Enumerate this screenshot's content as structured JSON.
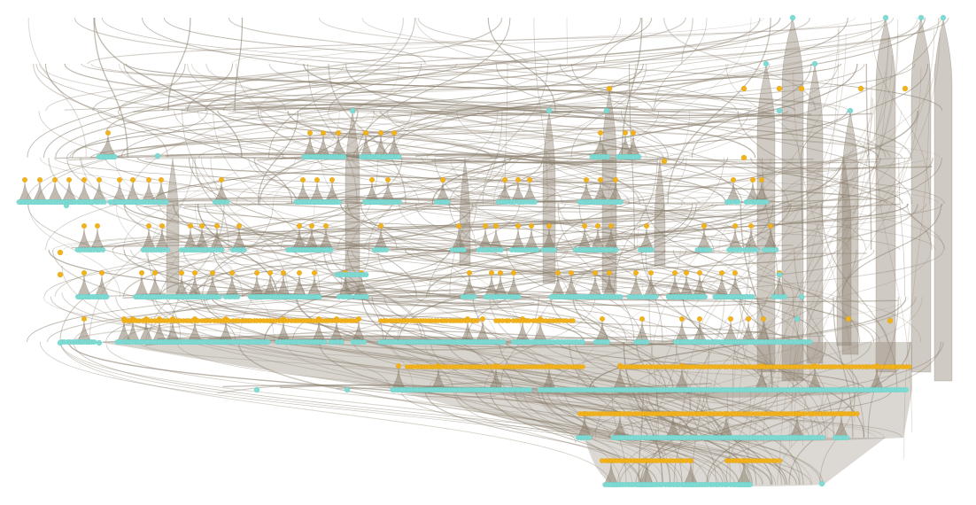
{
  "diagram": {
    "type": "layered-hierarchical-graph",
    "background": "#ffffff",
    "colors": {
      "edge": "#8a7e6c",
      "edge_light": "#b7ae9f",
      "bundle_fill": "#8c8170",
      "node_leaf": "#7fdad3",
      "node_hub": "#f2b21b"
    },
    "labels": [],
    "node_kinds": [
      "leaf",
      "hub"
    ]
  }
}
